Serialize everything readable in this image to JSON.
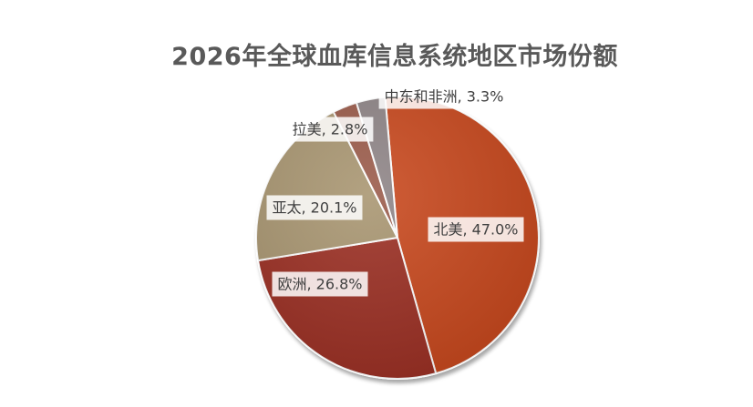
{
  "chart_data": {
    "type": "pie",
    "title": "2026年全球血库信息系统地区市场份额",
    "slices": [
      {
        "name": "北美",
        "value": 47.0,
        "label": "北美, 47.0%",
        "color": "#C8461B"
      },
      {
        "name": "欧洲",
        "value": 26.8,
        "label": "欧洲, 26.8%",
        "color": "#9B2E24"
      },
      {
        "name": "亚太",
        "value": 20.1,
        "label": "亚太, 20.1%",
        "color": "#A8956F"
      },
      {
        "name": "拉美",
        "value": 2.8,
        "label": "拉美, 2.8%",
        "color": "#9A5A4A"
      },
      {
        "name": "中东和非洲",
        "value": 3.3,
        "label": "中东和非洲, 3.3%",
        "color": "#8E8486"
      }
    ],
    "legend": "none"
  }
}
